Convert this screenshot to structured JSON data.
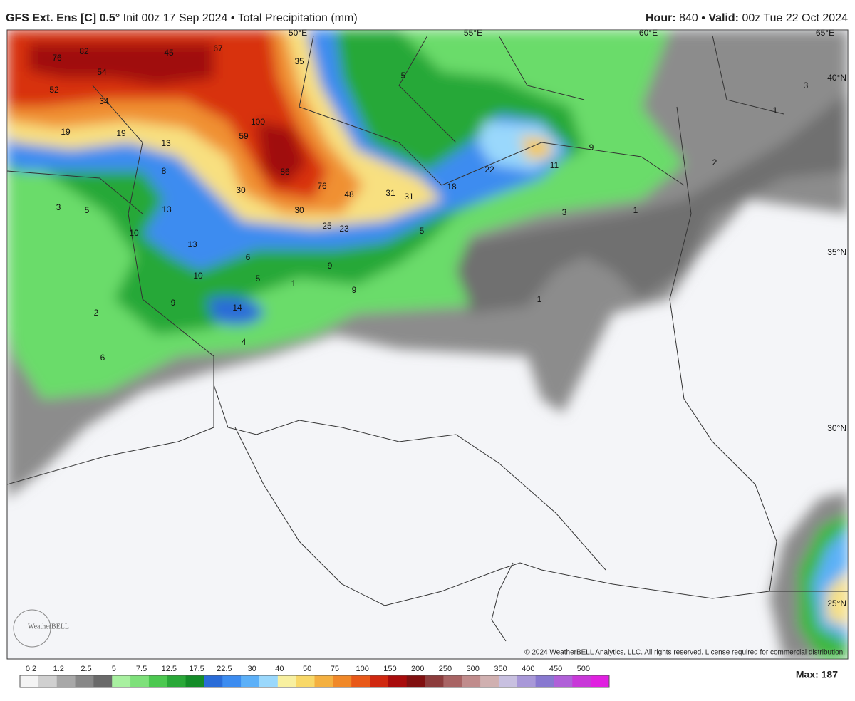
{
  "header": {
    "left": {
      "model": "GFS Ext.  Ens [C] 0.5°",
      "rest": "Init 00z 17 Sep 2024 • Total Precipitation (mm)"
    },
    "right": {
      "hour_label": "Hour:",
      "hour": "840 •",
      "valid_label": "Valid:",
      "valid": "00z Tue 22 Oct 2024"
    }
  },
  "map": {
    "graticule": [
      "50°E",
      "55°E",
      "60°E",
      "65°E",
      "40°N",
      "35°N",
      "30°N",
      "25°N"
    ],
    "labels": [
      76,
      82,
      54,
      52,
      34,
      45,
      67,
      35,
      5,
      19,
      19,
      13,
      100,
      59,
      8,
      86,
      76,
      48,
      31,
      31,
      18,
      22,
      11,
      9,
      3,
      1,
      2,
      3,
      5,
      13,
      30,
      30,
      25,
      23,
      1,
      3,
      5,
      10,
      13,
      6,
      9,
      10,
      5,
      1,
      9,
      1,
      14,
      9,
      2,
      4,
      6
    ],
    "copyright": "© 2024 WeatherBELL Analytics, LLC. All rights reserved. License required for commercial distribution.",
    "logo": "WeatherBELL"
  },
  "legend": {
    "ticks": [
      0.2,
      1.2,
      2.5,
      5,
      7.5,
      12.5,
      17.5,
      22.5,
      30,
      40,
      50,
      75,
      100,
      150,
      200,
      250,
      300,
      350,
      400,
      450,
      500
    ],
    "colors": [
      "#f4f4f4",
      "#d0d0d0",
      "#a8a8a8",
      "#888888",
      "#6a6a6a",
      "#a8f0a0",
      "#7ee07a",
      "#4cc850",
      "#2aa838",
      "#148c28",
      "#2a6cd8",
      "#3c8cf0",
      "#5cb0f8",
      "#9ad8fc",
      "#f8f0a0",
      "#f8d868",
      "#f4b040",
      "#f08828",
      "#e85818",
      "#d02810",
      "#a80c0c",
      "#801010",
      "#8c3c3c",
      "#a86464",
      "#c08c8c",
      "#d0b0b0",
      "#c8c0e0",
      "#a898d8",
      "#8878d0",
      "#b060d8",
      "#c838d8",
      "#e020e0"
    ],
    "max": "Max: 187"
  }
}
